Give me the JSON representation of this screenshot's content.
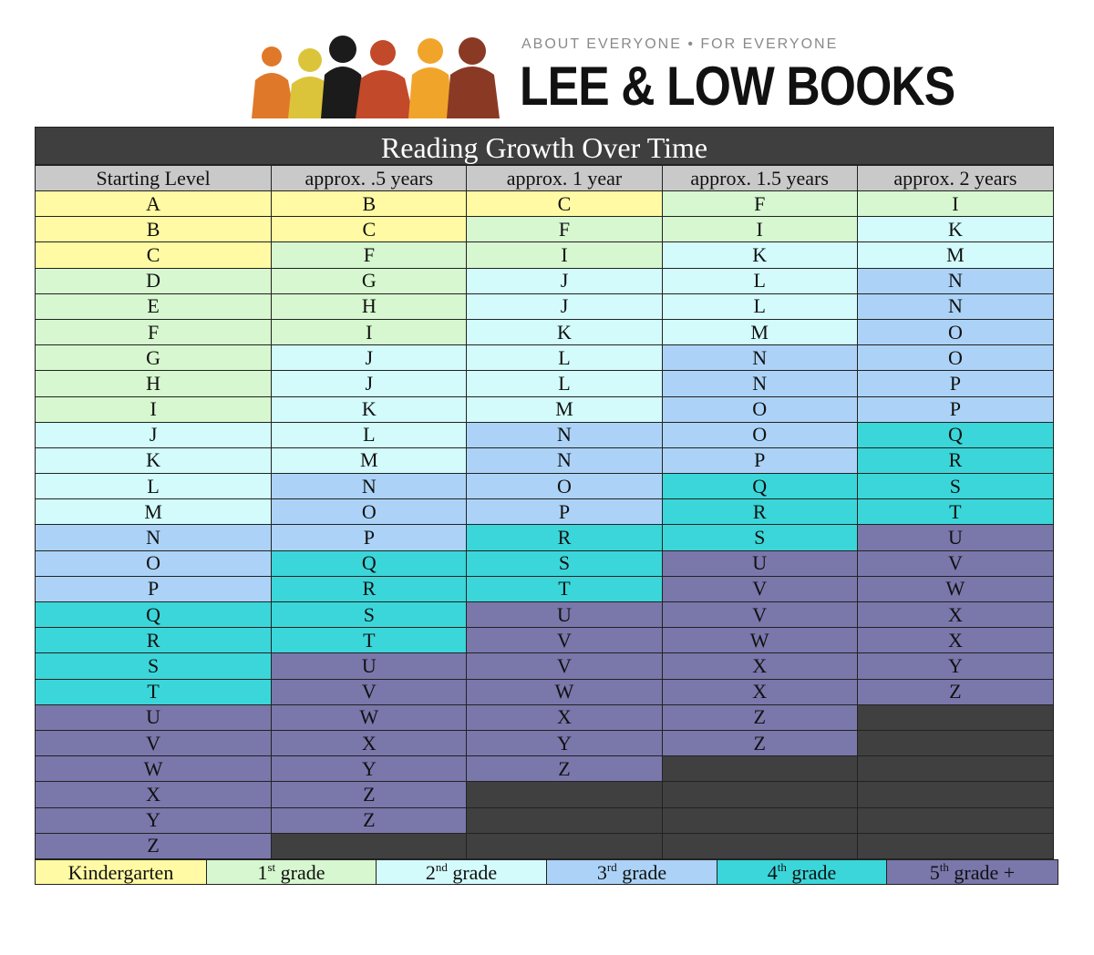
{
  "logo": {
    "tagline": "ABOUT EVERYONE • FOR EVERYONE",
    "name": "LEE & LOW BOOKS",
    "figure_colors": [
      "#e0782a",
      "#dcc43a",
      "#1b1b1b",
      "#c2492a",
      "#f0a52a",
      "#8a3a24"
    ]
  },
  "chart": {
    "title": "Reading Growth Over Time",
    "headers": [
      "Starting Level",
      "approx. .5 years",
      "approx. 1 year",
      "approx. 1.5 years",
      "approx. 2 years"
    ],
    "rows": [
      [
        "A",
        "B",
        "C",
        "F",
        "I"
      ],
      [
        "B",
        "C",
        "F",
        "I",
        "K"
      ],
      [
        "C",
        "F",
        "I",
        "K",
        "M"
      ],
      [
        "D",
        "G",
        "J",
        "L",
        "N"
      ],
      [
        "E",
        "H",
        "J",
        "L",
        "N"
      ],
      [
        "F",
        "I",
        "K",
        "M",
        "O"
      ],
      [
        "G",
        "J",
        "L",
        "N",
        "O"
      ],
      [
        "H",
        "J",
        "L",
        "N",
        "P"
      ],
      [
        "I",
        "K",
        "M",
        "O",
        "P"
      ],
      [
        "J",
        "L",
        "N",
        "O",
        "Q"
      ],
      [
        "K",
        "M",
        "N",
        "P",
        "R"
      ],
      [
        "L",
        "N",
        "O",
        "Q",
        "S"
      ],
      [
        "M",
        "O",
        "P",
        "R",
        "T"
      ],
      [
        "N",
        "P",
        "R",
        "S",
        "U"
      ],
      [
        "O",
        "Q",
        "S",
        "U",
        "V"
      ],
      [
        "P",
        "R",
        "T",
        "V",
        "W"
      ],
      [
        "Q",
        "S",
        "U",
        "V",
        "X"
      ],
      [
        "R",
        "T",
        "V",
        "W",
        "X"
      ],
      [
        "S",
        "U",
        "V",
        "X",
        "Y"
      ],
      [
        "T",
        "V",
        "W",
        "X",
        "Z"
      ],
      [
        "U",
        "W",
        "X",
        "Z",
        ""
      ],
      [
        "V",
        "X",
        "Y",
        "Z",
        ""
      ],
      [
        "W",
        "Y",
        "Z",
        "",
        ""
      ],
      [
        "X",
        "Z",
        "",
        "",
        ""
      ],
      [
        "Y",
        "Z",
        "",
        "",
        ""
      ],
      [
        "Z",
        "",
        "",
        "",
        ""
      ]
    ]
  },
  "legend": [
    {
      "key": "K",
      "text": "Kindergarten",
      "sup": "",
      "suffix": "",
      "width": 188
    },
    {
      "key": "1",
      "text": "1",
      "sup": "st",
      "suffix": " grade",
      "width": 186
    },
    {
      "key": "2",
      "text": "2",
      "sup": "nd",
      "suffix": " grade",
      "width": 187
    },
    {
      "key": "3",
      "text": "3",
      "sup": "rd",
      "suffix": " grade",
      "width": 187
    },
    {
      "key": "4",
      "text": "4",
      "sup": "th",
      "suffix": " grade",
      "width": 186
    },
    {
      "key": "5",
      "text": "5",
      "sup": "th",
      "suffix": " grade +",
      "width": 188
    }
  ],
  "grade_colors": {
    "K": "#fffaa3",
    "1": "#d6f7cf",
    "2": "#d3fbfb",
    "3": "#acd3f7",
    "4": "#3bd6d9",
    "5": "#7a77ab",
    "empty": "#404040"
  }
}
